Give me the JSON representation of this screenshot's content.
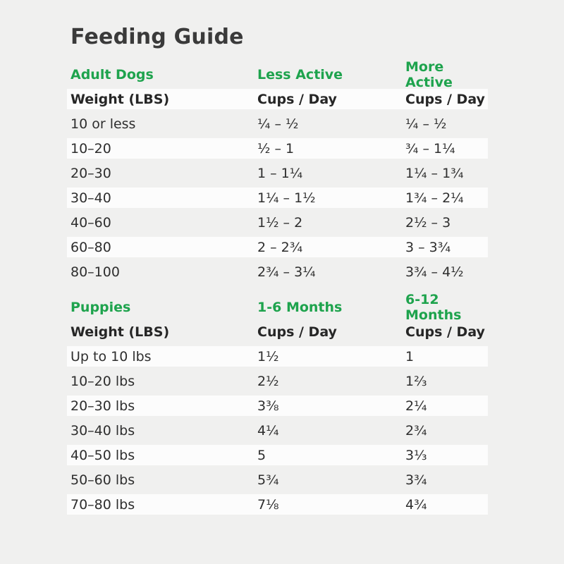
{
  "page": {
    "title": "Feeding Guide"
  },
  "colors": {
    "accent_green": "#1ea34d",
    "page_background": "#f0f0ef",
    "row_highlight": "#fcfcfc",
    "text_dark": "#2e2e2e"
  },
  "adult_table": {
    "section_label": "Adult Dogs",
    "col2_section_label": "Less Active",
    "col3_section_label": "More Active",
    "header": {
      "col1": "Weight (LBS)",
      "col2": "Cups / Day",
      "col3": "Cups / Day"
    },
    "rows": [
      {
        "weight": "10 or less",
        "less_active": "¼ – ½",
        "more_active": "¼ – ½"
      },
      {
        "weight": "10–20",
        "less_active": "½ – 1",
        "more_active": "¾ – 1¼"
      },
      {
        "weight": "20–30",
        "less_active": "1 – 1¼",
        "more_active": "1¼ – 1¾"
      },
      {
        "weight": "30–40",
        "less_active": "1¼ – 1½",
        "more_active": "1¾ – 2¼"
      },
      {
        "weight": "40–60",
        "less_active": "1½ – 2",
        "more_active": "2½ – 3"
      },
      {
        "weight": "60–80",
        "less_active": "2 – 2¾",
        "more_active": "3 – 3¾"
      },
      {
        "weight": "80–100",
        "less_active": "2¾ – 3¼",
        "more_active": "3¾ – 4½"
      }
    ]
  },
  "puppy_table": {
    "section_label": "Puppies",
    "col2_section_label": "1-6 Months",
    "col3_section_label": "6-12 Months",
    "header": {
      "col1": "Weight (LBS)",
      "col2": "Cups / Day",
      "col3": "Cups / Day"
    },
    "rows": [
      {
        "weight": "Up to 10 lbs",
        "months_1_6": "1½",
        "months_6_12": "1"
      },
      {
        "weight": "10–20 lbs",
        "months_1_6": "2½",
        "months_6_12": "1⅔"
      },
      {
        "weight": "20–30 lbs",
        "months_1_6": "3⅜",
        "months_6_12": "2¼"
      },
      {
        "weight": "30–40 lbs",
        "months_1_6": "4¼",
        "months_6_12": "2¾"
      },
      {
        "weight": "40–50 lbs",
        "months_1_6": "5",
        "months_6_12": "3⅓"
      },
      {
        "weight": "50–60 lbs",
        "months_1_6": "5¾",
        "months_6_12": "3¾"
      },
      {
        "weight": "70–80 lbs",
        "months_1_6": "7⅛",
        "months_6_12": "4¾"
      }
    ]
  }
}
